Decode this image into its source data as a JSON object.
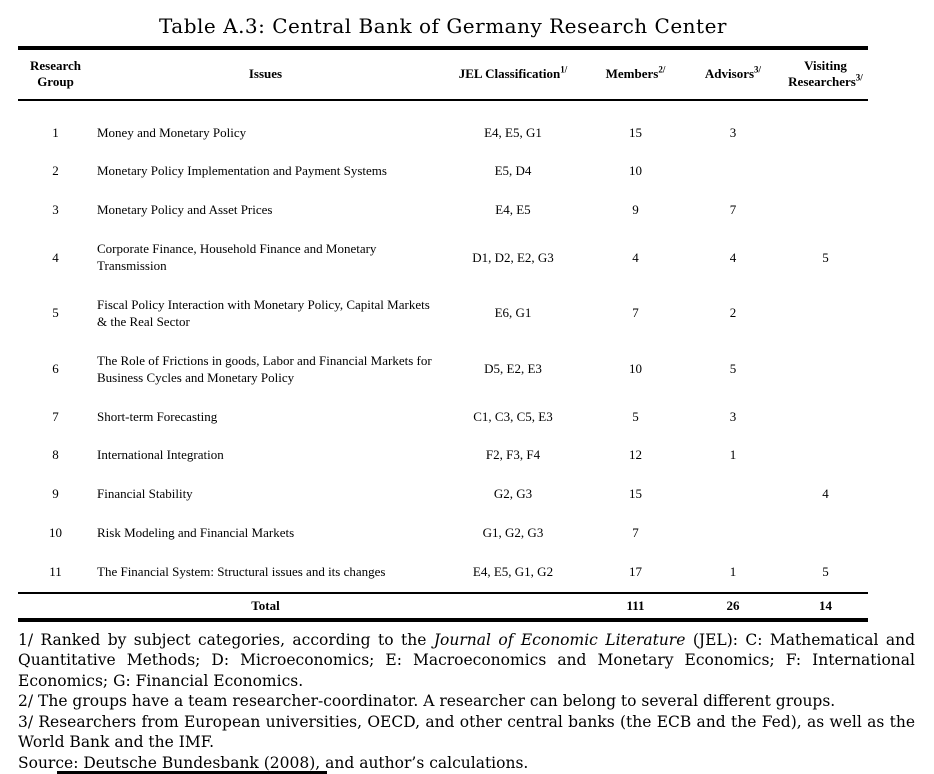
{
  "title": "Table A.3: Central Bank of Germany Research Center",
  "table": {
    "headers": {
      "group": "Research Group",
      "issues": "Issues",
      "jel": "JEL Classification",
      "jel_sup": "1/",
      "members": "Members",
      "members_sup": "2/",
      "advisors": "Advisors",
      "advisors_sup": "3/",
      "visiting_line1": "Visiting",
      "visiting_line2": "Researchers",
      "visiting_sup": "3/"
    },
    "rows": [
      {
        "group": "1",
        "issue": "Money and Monetary Policy",
        "jel": "E4, E5, G1",
        "members": "15",
        "advisors": "3",
        "visiting": ""
      },
      {
        "group": "2",
        "issue": "Monetary Policy Implementation and Payment Systems",
        "jel": "E5, D4",
        "members": "10",
        "advisors": "",
        "visiting": ""
      },
      {
        "group": "3",
        "issue": "Monetary Policy and Asset Prices",
        "jel": "E4, E5",
        "members": "9",
        "advisors": "7",
        "visiting": ""
      },
      {
        "group": "4",
        "issue": "Corporate Finance, Household Finance and Monetary Transmission",
        "jel": "D1, D2, E2, G3",
        "members": "4",
        "advisors": "4",
        "visiting": "5"
      },
      {
        "group": "5",
        "issue": "Fiscal Policy Interaction with Monetary Policy, Capital Markets & the Real Sector",
        "jel": "E6, G1",
        "members": "7",
        "advisors": "2",
        "visiting": ""
      },
      {
        "group": "6",
        "issue": "The Role of Frictions in goods, Labor and Financial Markets for Business Cycles and Monetary Policy",
        "jel": "D5, E2, E3",
        "members": "10",
        "advisors": "5",
        "visiting": ""
      },
      {
        "group": "7",
        "issue": "Short-term Forecasting",
        "jel": "C1, C3, C5, E3",
        "members": "5",
        "advisors": "3",
        "visiting": ""
      },
      {
        "group": "8",
        "issue": "International Integration",
        "jel": "F2, F3, F4",
        "members": "12",
        "advisors": "1",
        "visiting": ""
      },
      {
        "group": "9",
        "issue": "Financial Stability",
        "jel": "G2, G3",
        "members": "15",
        "advisors": "",
        "visiting": "4"
      },
      {
        "group": "10",
        "issue": "Risk Modeling and Financial Markets",
        "jel": "G1, G2, G3",
        "members": "7",
        "advisors": "",
        "visiting": ""
      },
      {
        "group": "11",
        "issue": "The Financial System: Structural issues and its changes",
        "jel": "E4, E5, G1, G2",
        "members": "17",
        "advisors": "1",
        "visiting": "5"
      }
    ],
    "total": {
      "label": "Total",
      "members": "111",
      "advisors": "26",
      "visiting": "14"
    }
  },
  "footnotes": {
    "fn1_pre": "1/ Ranked by subject categories, according to the ",
    "fn1_italic": "Journal of Economic Literature",
    "fn1_post": " (JEL): C: Mathematical and Quantitative Methods; D: Microeconomics; E: Macroeconomics and Monetary Economics; F: International Economics; G: Financial Economics.",
    "fn2": "2/ The groups have a team researcher-coordinator. A researcher can belong to several different groups.",
    "fn3": "3/ Researchers from European universities, OECD, and other central banks (the ECB and the Fed), as well as the World Bank and the IMF.",
    "source": "Source: Deutsche Bundesbank (2008), and author’s calculations."
  }
}
